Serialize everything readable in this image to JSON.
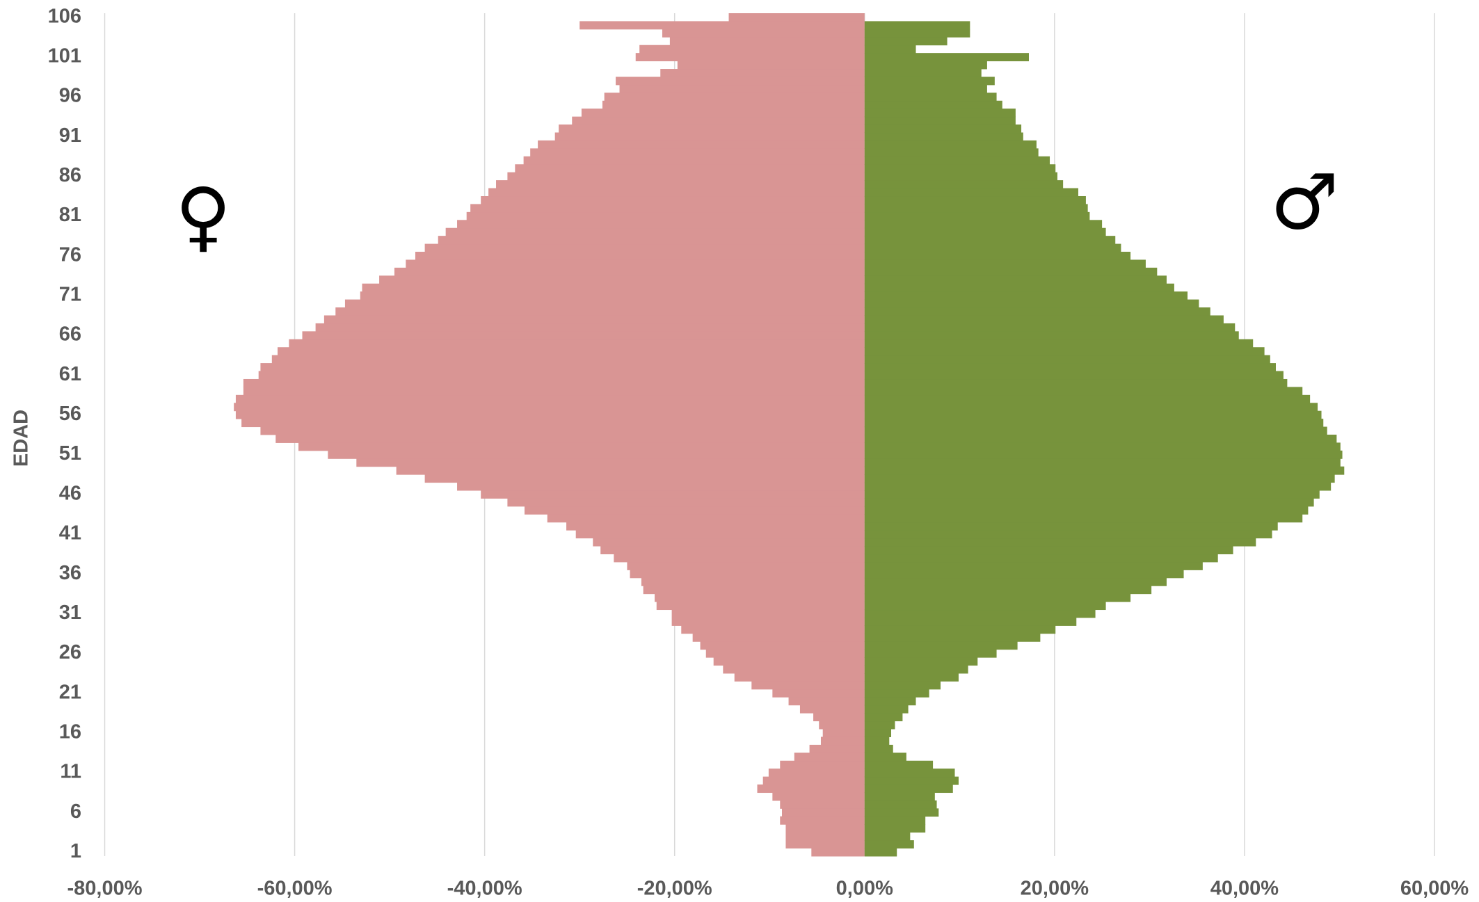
{
  "chart_data": {
    "type": "pyramid",
    "y_axis_label": "EDAD",
    "annotations": [
      "♀",
      "♂"
    ],
    "categories": [
      "1",
      null,
      null,
      null,
      null,
      "6",
      null,
      null,
      null,
      null,
      "11",
      null,
      null,
      null,
      null,
      "16",
      null,
      null,
      null,
      null,
      "21",
      null,
      null,
      null,
      null,
      "26",
      null,
      null,
      null,
      null,
      "31",
      null,
      null,
      null,
      null,
      "36",
      null,
      null,
      null,
      null,
      "41",
      null,
      null,
      null,
      null,
      "46",
      null,
      null,
      null,
      null,
      "51",
      null,
      null,
      null,
      null,
      "56",
      null,
      null,
      null,
      null,
      "61",
      null,
      null,
      null,
      null,
      "66",
      null,
      null,
      null,
      null,
      "71",
      null,
      null,
      null,
      null,
      "76",
      null,
      null,
      null,
      null,
      "81",
      null,
      null,
      null,
      null,
      "86",
      null,
      null,
      null,
      null,
      "91",
      null,
      null,
      null,
      null,
      "96",
      null,
      null,
      null,
      null,
      "101",
      null,
      null,
      null,
      null,
      "106"
    ],
    "series": [
      {
        "color": "#d99594",
        "values": [
          -5.6,
          -8.3,
          -8.3,
          -8.3,
          -8.9,
          -8.7,
          -8.9,
          -9.7,
          -11.3,
          -10.7,
          -10.1,
          -8.9,
          -7.4,
          -5.8,
          -4.6,
          -4.4,
          -4.8,
          -5.4,
          -6.8,
          -8.0,
          -9.7,
          -11.9,
          -13.7,
          -14.9,
          -15.9,
          -16.7,
          -17.3,
          -18.1,
          -19.3,
          -20.3,
          -20.3,
          -21.9,
          -22.1,
          -23.3,
          -23.5,
          -24.7,
          -25.0,
          -26.4,
          -27.8,
          -28.6,
          -30.4,
          -31.4,
          -33.4,
          -35.8,
          -37.6,
          -40.4,
          -42.9,
          -46.3,
          -49.3,
          -53.5,
          -56.5,
          -59.6,
          -62.0,
          -63.6,
          -65.6,
          -66.2,
          -66.4,
          -66.2,
          -65.4,
          -65.4,
          -63.8,
          -63.6,
          -62.4,
          -61.8,
          -60.6,
          -59.2,
          -57.8,
          -56.9,
          -55.7,
          -54.7,
          -53.1,
          -52.9,
          -51.1,
          -49.5,
          -48.3,
          -47.3,
          -46.3,
          -44.9,
          -44.1,
          -42.9,
          -41.9,
          -41.5,
          -40.4,
          -39.6,
          -38.8,
          -37.6,
          -36.8,
          -35.9,
          -35.2,
          -34.4,
          -32.6,
          -32.2,
          -30.8,
          -29.8,
          -27.6,
          -27.4,
          -25.8,
          -26.2,
          -21.5,
          -19.7,
          -24.1,
          -23.7,
          -20.5,
          -21.3,
          -30.0,
          -14.3
        ]
      },
      {
        "color": "#77933c",
        "values": [
          3.4,
          5.2,
          4.8,
          6.4,
          6.4,
          7.8,
          7.6,
          7.4,
          9.3,
          9.9,
          9.5,
          7.2,
          4.4,
          3.0,
          2.6,
          2.8,
          3.2,
          4.0,
          4.6,
          5.4,
          6.8,
          8.0,
          9.9,
          10.9,
          11.9,
          13.9,
          16.1,
          18.5,
          20.1,
          22.3,
          24.3,
          25.4,
          28.0,
          30.2,
          31.8,
          33.6,
          35.6,
          37.2,
          38.8,
          41.2,
          42.9,
          43.5,
          46.1,
          46.7,
          47.3,
          47.9,
          49.1,
          49.5,
          50.5,
          50.1,
          50.3,
          50.1,
          49.7,
          48.7,
          48.3,
          48.1,
          47.7,
          46.9,
          46.1,
          44.5,
          44.1,
          43.3,
          42.7,
          42.1,
          40.9,
          39.4,
          39.0,
          37.8,
          36.4,
          35.2,
          34.0,
          32.6,
          31.8,
          30.8,
          29.6,
          28.0,
          27.0,
          26.4,
          25.4,
          25.0,
          23.7,
          23.5,
          23.3,
          22.5,
          20.9,
          20.3,
          20.1,
          19.5,
          18.3,
          18.1,
          16.7,
          16.5,
          15.9,
          15.9,
          14.5,
          13.9,
          12.9,
          13.7,
          12.3,
          12.9,
          17.3,
          5.4,
          8.7,
          11.1,
          11.1,
          null
        ]
      }
    ],
    "xlim": [
      -80,
      60
    ],
    "xticks": [
      {
        "value": -80,
        "label": "-80,00%"
      },
      {
        "value": -60,
        "label": "-60,00%"
      },
      {
        "value": -40,
        "label": "-40,00%"
      },
      {
        "value": -20,
        "label": "-20,00%"
      },
      {
        "value": 0,
        "label": "0,00%"
      },
      {
        "value": 20,
        "label": "20,00%"
      },
      {
        "value": 40,
        "label": "40,00%"
      },
      {
        "value": 60,
        "label": "60,00%"
      }
    ],
    "grid": true
  }
}
